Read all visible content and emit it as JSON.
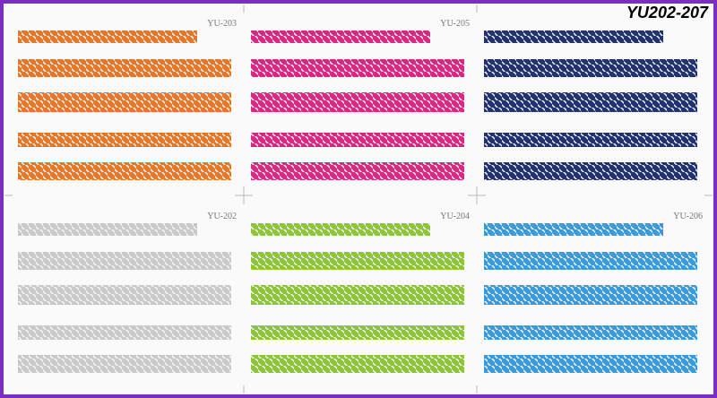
{
  "title": "YU202-207",
  "panels": [
    {
      "label": "YU-203",
      "color": "#e2782c"
    },
    {
      "label": "YU-205",
      "color": "#d42a82"
    },
    {
      "color": "#233270"
    },
    {
      "label": "YU-202",
      "color": "#c9c9c9"
    },
    {
      "label": "YU-204",
      "color": "#8dc43a"
    },
    {
      "label": "YU-206",
      "color": "#3c9bd7"
    }
  ]
}
